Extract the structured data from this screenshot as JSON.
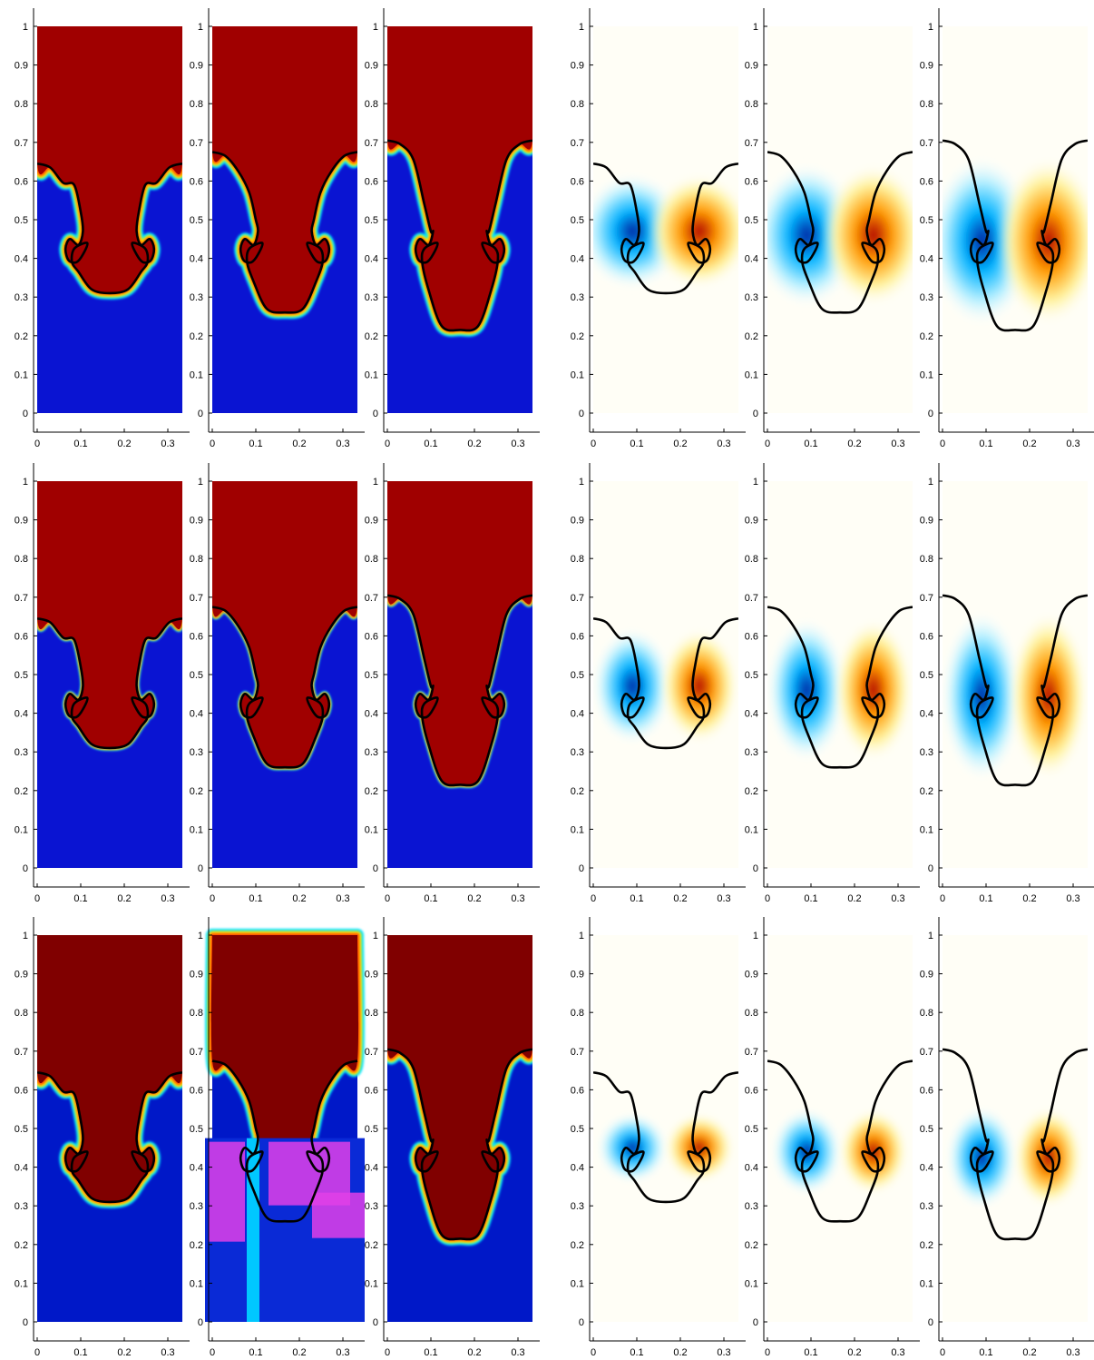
{
  "chart_data": {
    "type": "heatmap",
    "layout": {
      "rows": 3,
      "cols": 6
    },
    "xlim": [
      0,
      0.333
    ],
    "ylim": [
      0,
      1
    ],
    "xticks": [
      0,
      0.1,
      0.2,
      0.3
    ],
    "xtick_labels": [
      "0",
      "0.1",
      "0.2",
      "0.3"
    ],
    "yticks": [
      0,
      0.1,
      0.2,
      0.3,
      0.4,
      0.5,
      0.6,
      0.7,
      0.8,
      0.9,
      1
    ],
    "ytick_labels": [
      "0",
      "0.1",
      "0.2",
      "0.3",
      "0.4",
      "0.5",
      "0.6",
      "0.7",
      "0.8",
      "0.9",
      "1"
    ],
    "grid": false,
    "colors": {
      "fluid_high": "#a00000",
      "fluid_low": "#0a14d2",
      "pos": "#ff9a00",
      "neg": "#00b4ff",
      "interface": "#000000"
    },
    "interface_stages": [
      {
        "edge_y": 0.645,
        "bottom_y": 0.31,
        "hook_y": 0.42,
        "neck_y": 0.52
      },
      {
        "edge_y": 0.675,
        "bottom_y": 0.26,
        "hook_y": 0.42,
        "neck_y": 0.5
      },
      {
        "edge_y": 0.705,
        "bottom_y": 0.215,
        "hook_y": 0.42,
        "neck_y": 0.47
      }
    ],
    "panels": [
      {
        "row": 0,
        "col": 0,
        "field": "density",
        "stage": 0
      },
      {
        "row": 0,
        "col": 1,
        "field": "density",
        "stage": 1
      },
      {
        "row": 0,
        "col": 2,
        "field": "density",
        "stage": 2
      },
      {
        "row": 0,
        "col": 3,
        "field": "vorticity",
        "stage": 0
      },
      {
        "row": 0,
        "col": 4,
        "field": "vorticity",
        "stage": 1
      },
      {
        "row": 0,
        "col": 5,
        "field": "vorticity",
        "stage": 2
      },
      {
        "row": 1,
        "col": 0,
        "field": "density",
        "stage": 0
      },
      {
        "row": 1,
        "col": 1,
        "field": "density",
        "stage": 1
      },
      {
        "row": 1,
        "col": 2,
        "field": "density",
        "stage": 2
      },
      {
        "row": 1,
        "col": 3,
        "field": "vorticity",
        "stage": 0
      },
      {
        "row": 1,
        "col": 4,
        "field": "vorticity",
        "stage": 1
      },
      {
        "row": 1,
        "col": 5,
        "field": "vorticity",
        "stage": 2
      },
      {
        "row": 2,
        "col": 0,
        "field": "density",
        "stage": 0
      },
      {
        "row": 2,
        "col": 1,
        "field": "density",
        "stage": 1,
        "corrupted": true
      },
      {
        "row": 2,
        "col": 2,
        "field": "density",
        "stage": 2
      },
      {
        "row": 2,
        "col": 3,
        "field": "vorticity",
        "stage": 0
      },
      {
        "row": 2,
        "col": 4,
        "field": "vorticity",
        "stage": 1
      },
      {
        "row": 2,
        "col": 5,
        "field": "vorticity",
        "stage": 2
      }
    ]
  }
}
